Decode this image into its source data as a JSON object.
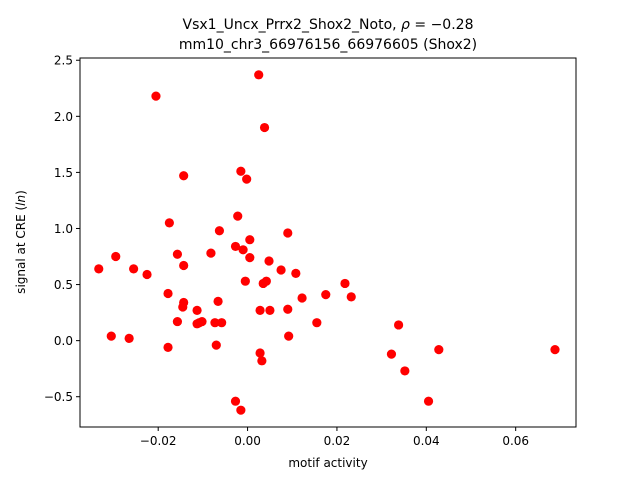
{
  "chart_data": {
    "type": "scatter",
    "title_line1": "Vsx1_Uncx_Prrx2_Shox2_Noto, ρ = −0.28",
    "title_line2": "mm10_chr3_66976156_66976605 (Shox2)",
    "xlabel": "motif activity",
    "ylabel": "signal at CRE (ln)",
    "xlim": [
      -0.0375,
      0.0735
    ],
    "ylim": [
      -0.77,
      2.52
    ],
    "xticks": [
      -0.02,
      0.0,
      0.02,
      0.04,
      0.06
    ],
    "xtick_labels": [
      "−0.02",
      "0.00",
      "0.02",
      "0.04",
      "0.06"
    ],
    "yticks": [
      -0.5,
      0.0,
      0.5,
      1.0,
      1.5,
      2.0,
      2.5
    ],
    "ytick_labels": [
      "−0.5",
      "0.0",
      "0.5",
      "1.0",
      "1.5",
      "2.0",
      "2.5"
    ],
    "grid": false,
    "marker_color": "#ff0000",
    "points": [
      [
        -0.0333,
        0.64
      ],
      [
        -0.0305,
        0.04
      ],
      [
        -0.0295,
        0.75
      ],
      [
        -0.0265,
        0.02
      ],
      [
        -0.0255,
        0.64
      ],
      [
        -0.0225,
        0.59
      ],
      [
        -0.0205,
        2.18
      ],
      [
        -0.0178,
        0.42
      ],
      [
        -0.0178,
        -0.06
      ],
      [
        -0.0175,
        1.05
      ],
      [
        -0.0157,
        0.77
      ],
      [
        -0.0157,
        0.17
      ],
      [
        -0.0145,
        0.3
      ],
      [
        -0.0143,
        0.34
      ],
      [
        -0.0143,
        1.47
      ],
      [
        -0.0143,
        0.67
      ],
      [
        -0.0113,
        0.27
      ],
      [
        -0.0113,
        0.15
      ],
      [
        -0.0108,
        0.16
      ],
      [
        -0.0102,
        0.17
      ],
      [
        -0.0082,
        0.78
      ],
      [
        -0.0073,
        0.16
      ],
      [
        -0.007,
        -0.04
      ],
      [
        -0.0066,
        0.35
      ],
      [
        -0.0063,
        0.98
      ],
      [
        -0.0058,
        0.16
      ],
      [
        -0.0027,
        -0.54
      ],
      [
        -0.0027,
        0.84
      ],
      [
        -0.0022,
        1.11
      ],
      [
        -0.0015,
        -0.62
      ],
      [
        -0.0015,
        1.51
      ],
      [
        -0.001,
        0.81
      ],
      [
        -0.0005,
        0.53
      ],
      [
        -0.0002,
        1.44
      ],
      [
        0.0005,
        0.9
      ],
      [
        0.0005,
        0.74
      ],
      [
        0.0025,
        2.37
      ],
      [
        0.0028,
        -0.11
      ],
      [
        0.0028,
        0.27
      ],
      [
        0.0032,
        -0.18
      ],
      [
        0.0035,
        0.51
      ],
      [
        0.0038,
        1.9
      ],
      [
        0.0042,
        0.53
      ],
      [
        0.0048,
        0.71
      ],
      [
        0.005,
        0.27
      ],
      [
        0.0075,
        0.63
      ],
      [
        0.009,
        0.96
      ],
      [
        0.009,
        0.28
      ],
      [
        0.0092,
        0.04
      ],
      [
        0.0108,
        0.6
      ],
      [
        0.0122,
        0.38
      ],
      [
        0.0155,
        0.16
      ],
      [
        0.0175,
        0.41
      ],
      [
        0.0218,
        0.51
      ],
      [
        0.0232,
        0.39
      ],
      [
        0.0322,
        -0.12
      ],
      [
        0.0338,
        0.14
      ],
      [
        0.0352,
        -0.27
      ],
      [
        0.0405,
        -0.54
      ],
      [
        0.0428,
        -0.08
      ],
      [
        0.0688,
        -0.08
      ]
    ]
  }
}
